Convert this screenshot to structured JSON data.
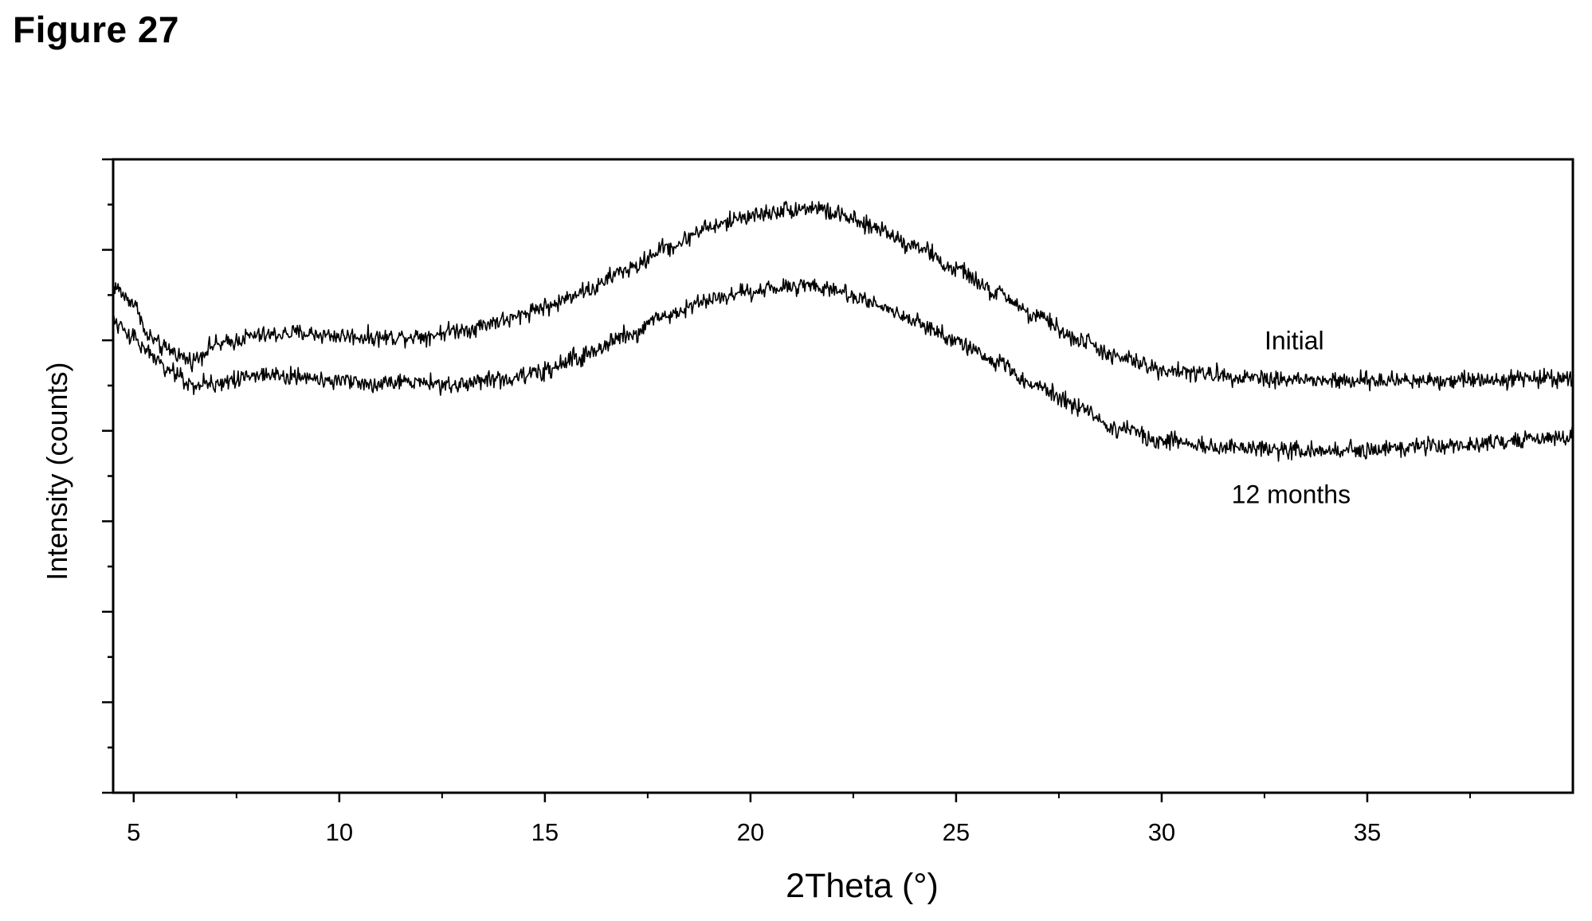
{
  "figure_label": "Figure 27",
  "chart_data": {
    "type": "line",
    "title": "",
    "xlabel": "2Theta (°)",
    "ylabel": "Intensity (counts)",
    "xlim": [
      4.5,
      40
    ],
    "ylim": [
      0,
      700
    ],
    "x_ticks": [
      5,
      10,
      15,
      20,
      25,
      30,
      35
    ],
    "y_tick_labels_shown": false,
    "grid": false,
    "legend": "none (series labelled inline at right)",
    "series": [
      {
        "name": "Initial",
        "color": "#000000",
        "noise": 6,
        "points": [
          [
            4.5,
            560
          ],
          [
            4.9,
            545
          ],
          [
            5.1,
            535
          ],
          [
            5.3,
            505
          ],
          [
            5.8,
            490
          ],
          [
            6.4,
            478
          ],
          [
            7.0,
            495
          ],
          [
            8.0,
            505
          ],
          [
            9.0,
            508
          ],
          [
            10.0,
            505
          ],
          [
            11.0,
            503
          ],
          [
            12.0,
            505
          ],
          [
            13.0,
            512
          ],
          [
            14.0,
            522
          ],
          [
            15.0,
            537
          ],
          [
            16.0,
            555
          ],
          [
            17.0,
            578
          ],
          [
            18.0,
            603
          ],
          [
            19.0,
            625
          ],
          [
            20.0,
            638
          ],
          [
            21.0,
            645
          ],
          [
            21.6,
            647
          ],
          [
            22.0,
            640
          ],
          [
            23.0,
            625
          ],
          [
            24.0,
            605
          ],
          [
            25.0,
            578
          ],
          [
            26.0,
            552
          ],
          [
            27.0,
            525
          ],
          [
            28.0,
            500
          ],
          [
            29.0,
            480
          ],
          [
            30.0,
            468
          ],
          [
            31.0,
            463
          ],
          [
            32.0,
            460
          ],
          [
            33.0,
            457
          ],
          [
            34.0,
            455
          ],
          [
            35.0,
            455
          ],
          [
            36.0,
            456
          ],
          [
            37.0,
            456
          ],
          [
            38.0,
            457
          ],
          [
            39.0,
            458
          ],
          [
            40.0,
            459
          ]
        ]
      },
      {
        "name": "12 months",
        "color": "#000000",
        "noise": 6,
        "points": [
          [
            4.5,
            520
          ],
          [
            4.9,
            505
          ],
          [
            5.3,
            490
          ],
          [
            5.8,
            468
          ],
          [
            6.4,
            452
          ],
          [
            7.0,
            453
          ],
          [
            8.0,
            462
          ],
          [
            9.0,
            461
          ],
          [
            10.0,
            456
          ],
          [
            11.0,
            452
          ],
          [
            12.0,
            452
          ],
          [
            13.0,
            452
          ],
          [
            14.0,
            457
          ],
          [
            15.0,
            466
          ],
          [
            16.0,
            483
          ],
          [
            17.0,
            505
          ],
          [
            18.0,
            528
          ],
          [
            19.0,
            545
          ],
          [
            20.0,
            553
          ],
          [
            21.0,
            560
          ],
          [
            21.4,
            562
          ],
          [
            22.0,
            556
          ],
          [
            23.0,
            542
          ],
          [
            24.0,
            522
          ],
          [
            25.0,
            500
          ],
          [
            26.0,
            475
          ],
          [
            27.0,
            450
          ],
          [
            28.0,
            425
          ],
          [
            29.0,
            402
          ],
          [
            30.0,
            390
          ],
          [
            31.0,
            383
          ],
          [
            32.0,
            382
          ],
          [
            33.0,
            379
          ],
          [
            34.0,
            378
          ],
          [
            35.0,
            380
          ],
          [
            36.0,
            382
          ],
          [
            37.0,
            384
          ],
          [
            38.0,
            386
          ],
          [
            39.0,
            390
          ],
          [
            40.0,
            394
          ]
        ]
      }
    ],
    "annotations": [
      {
        "text": "Initial",
        "x": 32.5,
        "y": 490
      },
      {
        "text": "12 months",
        "x": 31.7,
        "y": 320
      }
    ]
  }
}
